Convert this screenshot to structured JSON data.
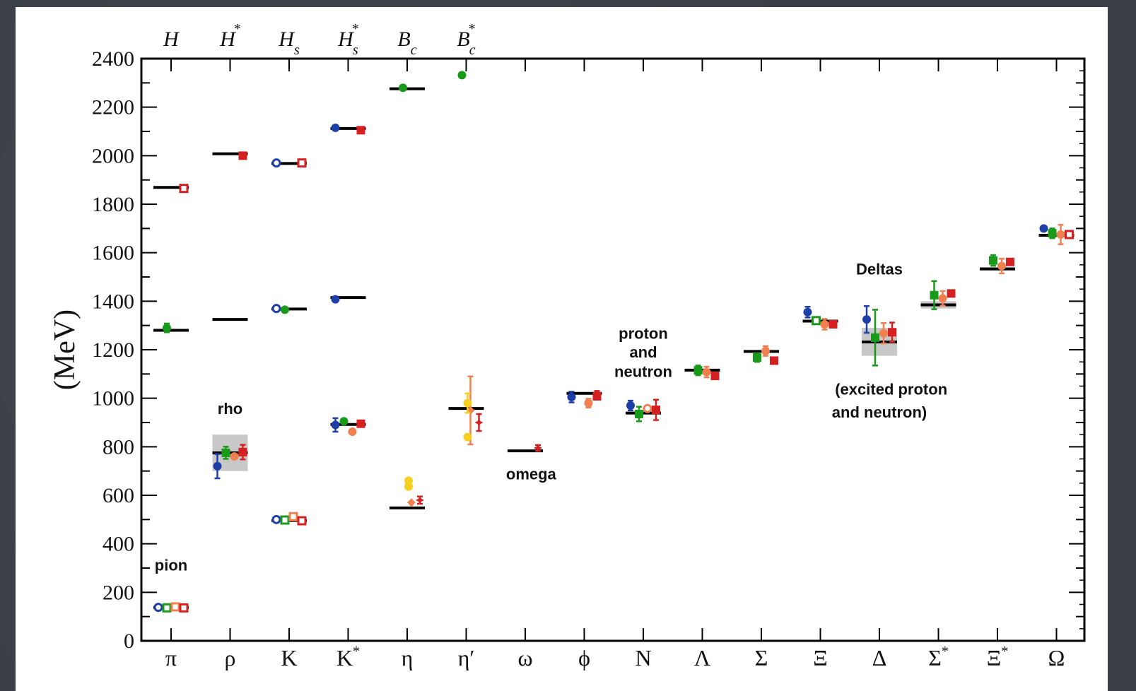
{
  "chart_data": {
    "type": "scatter",
    "ylabel": "(MeV)",
    "ylim": [
      0,
      2400
    ],
    "yticks": [
      0,
      200,
      400,
      600,
      800,
      1000,
      1200,
      1400,
      1600,
      1800,
      2000,
      2200,
      2400
    ],
    "categories": [
      {
        "label": "π"
      },
      {
        "label": "ρ"
      },
      {
        "label": "K"
      },
      {
        "label": "K",
        "sup": "*"
      },
      {
        "label": "η"
      },
      {
        "label": "η′"
      },
      {
        "label": "ω"
      },
      {
        "label": "ϕ"
      },
      {
        "label": "N"
      },
      {
        "label": "Λ"
      },
      {
        "label": "Σ"
      },
      {
        "label": "Ξ"
      },
      {
        "label": "Δ"
      },
      {
        "label": "Σ",
        "sup": "*"
      },
      {
        "label": "Ξ",
        "sup": "*"
      },
      {
        "label": "Ω"
      }
    ],
    "top_categories": [
      {
        "label": "H",
        "sup": "",
        "sub": ""
      },
      {
        "label": "H",
        "sup": "*",
        "sub": ""
      },
      {
        "label": "H",
        "sup": "",
        "sub": "s"
      },
      {
        "label": "H",
        "sup": "*",
        "sub": "s"
      },
      {
        "label": "B",
        "sup": "",
        "sub": "c"
      },
      {
        "label": "B",
        "sup": "*",
        "sub": "c"
      }
    ],
    "colors": {
      "blue": "#1f3fa8",
      "green": "#1a9a1a",
      "orange": "#f08050",
      "red": "#d42020",
      "yellow": "#f5d020",
      "band": "#c8c8c8"
    },
    "experimental_levels": [
      {
        "cat": 0,
        "y": 138
      },
      {
        "cat": 0,
        "y": 1280
      },
      {
        "cat": 0,
        "y": 1869
      },
      {
        "cat": 1,
        "y": 775,
        "band": [
          700,
          850
        ]
      },
      {
        "cat": 1,
        "y": 1325
      },
      {
        "cat": 1,
        "y": 2008
      },
      {
        "cat": 2,
        "y": 496
      },
      {
        "cat": 2,
        "y": 1368
      },
      {
        "cat": 2,
        "y": 1968
      },
      {
        "cat": 3,
        "y": 892
      },
      {
        "cat": 3,
        "y": 1415
      },
      {
        "cat": 3,
        "y": 2112
      },
      {
        "cat": 4,
        "y": 548
      },
      {
        "cat": 4,
        "y": 2276
      },
      {
        "cat": 5,
        "y": 958
      },
      {
        "cat": 6,
        "y": 783
      },
      {
        "cat": 7,
        "y": 1020
      },
      {
        "cat": 8,
        "y": 939
      },
      {
        "cat": 9,
        "y": 1116
      },
      {
        "cat": 10,
        "y": 1193
      },
      {
        "cat": 11,
        "y": 1318
      },
      {
        "cat": 12,
        "y": 1232,
        "band": [
          1175,
          1290
        ]
      },
      {
        "cat": 13,
        "y": 1385,
        "band": [
          1370,
          1400
        ]
      },
      {
        "cat": 14,
        "y": 1533,
        "band": [
          1527,
          1540
        ]
      },
      {
        "cat": 15,
        "y": 1672
      }
    ],
    "series": [
      {
        "color": "blue",
        "points": [
          {
            "cat": 0,
            "y": 138,
            "shape": "circle-open"
          },
          {
            "cat": 1,
            "y": 720,
            "err": 50,
            "shape": "circle"
          },
          {
            "cat": 2,
            "y": 500,
            "shape": "circle-open"
          },
          {
            "cat": 2,
            "y": 1370,
            "shape": "circle-open"
          },
          {
            "cat": 2,
            "y": 1970,
            "shape": "circle-open"
          },
          {
            "cat": 3,
            "y": 890,
            "err": 28,
            "shape": "circle"
          },
          {
            "cat": 3,
            "y": 1408,
            "shape": "circle"
          },
          {
            "cat": 3,
            "y": 2115,
            "shape": "circle"
          },
          {
            "cat": 7,
            "y": 1005,
            "err": 22,
            "shape": "circle"
          },
          {
            "cat": 8,
            "y": 970,
            "err": 20,
            "shape": "circle"
          },
          {
            "cat": 11,
            "y": 1355,
            "err": 22,
            "shape": "circle"
          },
          {
            "cat": 12,
            "y": 1325,
            "err": 55,
            "shape": "circle"
          },
          {
            "cat": 15,
            "y": 1700,
            "shape": "circle"
          }
        ]
      },
      {
        "color": "green",
        "points": [
          {
            "cat": 0,
            "y": 136,
            "shape": "square-open"
          },
          {
            "cat": 0,
            "y": 1290,
            "err": 18,
            "shape": "circle"
          },
          {
            "cat": 1,
            "y": 775,
            "err": 25,
            "shape": "square"
          },
          {
            "cat": 2,
            "y": 498,
            "shape": "square-open"
          },
          {
            "cat": 2,
            "y": 1365,
            "shape": "circle"
          },
          {
            "cat": 3,
            "y": 905,
            "shape": "circle"
          },
          {
            "cat": 4,
            "y": 2280,
            "shape": "circle"
          },
          {
            "cat": 5,
            "y": 2332,
            "shape": "circle"
          },
          {
            "cat": 8,
            "y": 935,
            "err": 30,
            "shape": "square"
          },
          {
            "cat": 9,
            "y": 1115,
            "err": 20,
            "shape": "square"
          },
          {
            "cat": 10,
            "y": 1168,
            "err": 18,
            "shape": "square"
          },
          {
            "cat": 11,
            "y": 1320,
            "shape": "square-open"
          },
          {
            "cat": 12,
            "y": 1250,
            "err": 115,
            "shape": "square"
          },
          {
            "cat": 13,
            "y": 1425,
            "err": 58,
            "shape": "square"
          },
          {
            "cat": 14,
            "y": 1568,
            "err": 22,
            "shape": "square"
          },
          {
            "cat": 15,
            "y": 1680,
            "err": 20,
            "shape": "square"
          }
        ]
      },
      {
        "color": "orange",
        "points": [
          {
            "cat": 0,
            "y": 140,
            "shape": "square-open"
          },
          {
            "cat": 1,
            "y": 760,
            "shape": "circle"
          },
          {
            "cat": 2,
            "y": 512,
            "shape": "square-open"
          },
          {
            "cat": 3,
            "y": 862,
            "shape": "circle"
          },
          {
            "cat": 4,
            "y": 570,
            "shape": "diamond"
          },
          {
            "cat": 5,
            "y": 950,
            "err": 140,
            "shape": "diamond"
          },
          {
            "cat": 7,
            "y": 980,
            "err": 18,
            "shape": "circle"
          },
          {
            "cat": 8,
            "y": 958,
            "shape": "circle-open"
          },
          {
            "cat": 9,
            "y": 1108,
            "err": 22,
            "shape": "circle"
          },
          {
            "cat": 10,
            "y": 1195,
            "err": 20,
            "shape": "circle"
          },
          {
            "cat": 11,
            "y": 1305,
            "err": 22,
            "shape": "circle"
          },
          {
            "cat": 12,
            "y": 1268,
            "err": 42,
            "shape": "circle"
          },
          {
            "cat": 13,
            "y": 1412,
            "err": 30,
            "shape": "circle"
          },
          {
            "cat": 14,
            "y": 1545,
            "err": 30,
            "shape": "circle"
          },
          {
            "cat": 15,
            "y": 1675,
            "err": 40,
            "shape": "circle"
          }
        ]
      },
      {
        "color": "red",
        "points": [
          {
            "cat": 0,
            "y": 1865,
            "shape": "square-open"
          },
          {
            "cat": 0,
            "y": 136,
            "shape": "square-open"
          },
          {
            "cat": 1,
            "y": 778,
            "err": 30,
            "shape": "square"
          },
          {
            "cat": 1,
            "y": 2000,
            "shape": "square"
          },
          {
            "cat": 2,
            "y": 495,
            "shape": "square-open"
          },
          {
            "cat": 2,
            "y": 1970,
            "shape": "square-open"
          },
          {
            "cat": 3,
            "y": 895,
            "shape": "square"
          },
          {
            "cat": 3,
            "y": 2105,
            "shape": "square"
          },
          {
            "cat": 4,
            "y": 580,
            "err": 15,
            "shape": "star"
          },
          {
            "cat": 5,
            "y": 900,
            "err": 35,
            "shape": "star"
          },
          {
            "cat": 6,
            "y": 795,
            "err": 12,
            "shape": "star"
          },
          {
            "cat": 7,
            "y": 1018,
            "err": 12,
            "shape": "star"
          },
          {
            "cat": 7,
            "y": 1008,
            "shape": "square"
          },
          {
            "cat": 8,
            "y": 952,
            "err": 42,
            "shape": "square"
          },
          {
            "cat": 9,
            "y": 1092,
            "shape": "square"
          },
          {
            "cat": 10,
            "y": 1155,
            "shape": "square"
          },
          {
            "cat": 11,
            "y": 1305,
            "shape": "square"
          },
          {
            "cat": 12,
            "y": 1272,
            "err": 40,
            "shape": "square"
          },
          {
            "cat": 13,
            "y": 1432,
            "shape": "square"
          },
          {
            "cat": 14,
            "y": 1562,
            "shape": "square"
          },
          {
            "cat": 15,
            "y": 1675,
            "shape": "square-open"
          }
        ]
      },
      {
        "color": "yellow",
        "points": [
          {
            "cat": 4,
            "y": 660,
            "shape": "circle"
          },
          {
            "cat": 4,
            "y": 636,
            "shape": "circle"
          },
          {
            "cat": 5,
            "y": 980,
            "err": 40,
            "shape": "circle"
          },
          {
            "cat": 5,
            "y": 840,
            "shape": "circle"
          }
        ]
      }
    ],
    "annotations": [
      {
        "text": "pion",
        "cat": 0,
        "y": 290
      },
      {
        "text": "rho",
        "cat": 1,
        "y": 935
      },
      {
        "text": "omega",
        "cat": 6.1,
        "y": 665
      },
      {
        "text": "proton",
        "cat": 8,
        "y": 1245
      },
      {
        "text": "and",
        "cat": 8,
        "y": 1168
      },
      {
        "text": "neutron",
        "cat": 8,
        "y": 1088
      },
      {
        "text": "Deltas",
        "cat": 12,
        "y": 1510
      },
      {
        "text": "(excited proton",
        "cat": 12.2,
        "y": 1015
      },
      {
        "text": "and neutron)",
        "cat": 12.0,
        "y": 920
      }
    ]
  }
}
